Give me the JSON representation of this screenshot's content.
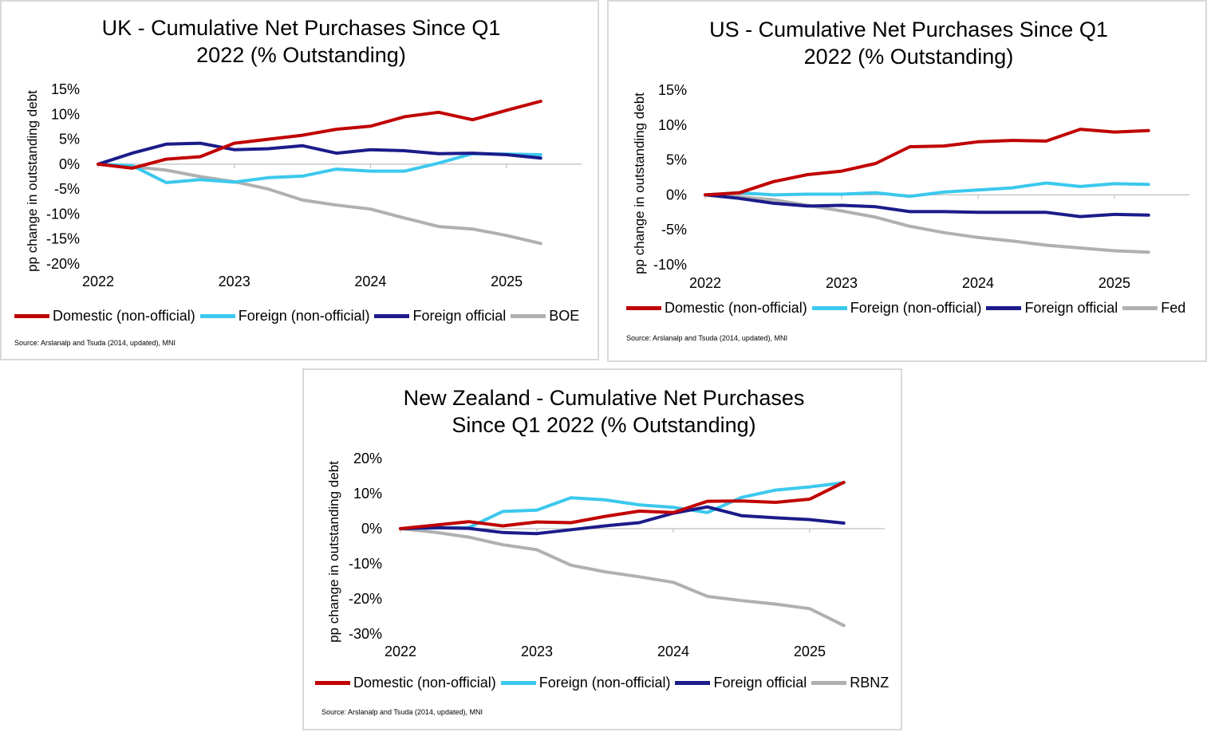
{
  "colors": {
    "domestic": "#c00000",
    "foreign_nonofficial": "#3cc8ee",
    "foreign_official": "#1b1b8a",
    "central_bank": "#b0b0b0",
    "axis": "#bfbfbf"
  },
  "chart_data": [
    {
      "id": "uk",
      "type": "line",
      "title_line1": "UK - Cumulative Net Purchases Since Q1",
      "title_line2": "2022 (% Outstanding)",
      "ylabel": "pp change in outstanding debt",
      "source": "Source: Arslanalp and Tsuda (2014, updated), MNI",
      "ylim": [
        -20,
        15
      ],
      "yticks": [
        15,
        10,
        5,
        0,
        -5,
        -10,
        -15,
        -20
      ],
      "ytick_labels": [
        "15%",
        "10%",
        "5%",
        "0%",
        "-5%",
        "-10%",
        "-15%",
        "-20%"
      ],
      "xticks": [
        2022,
        2023,
        2024,
        2025
      ],
      "xtick_labels": [
        "2022",
        "2023",
        "2024",
        "2025"
      ],
      "x": [
        2022.0,
        2022.25,
        2022.5,
        2022.75,
        2023.0,
        2023.25,
        2023.5,
        2023.75,
        2024.0,
        2024.25,
        2024.5,
        2024.75,
        2025.0,
        2025.25
      ],
      "series": [
        {
          "name": "Domestic (non-official)",
          "color_key": "domestic",
          "values": [
            0,
            -0.8,
            1.0,
            1.5,
            4.2,
            5.0,
            5.8,
            7.0,
            7.6,
            9.5,
            10.4,
            8.9,
            10.8,
            12.6
          ]
        },
        {
          "name": "Foreign (non-official)",
          "color_key": "foreign_nonofficial",
          "values": [
            0,
            -0.3,
            -3.7,
            -3.1,
            -3.6,
            -2.7,
            -2.4,
            -1.0,
            -1.4,
            -1.4,
            0.2,
            2.1,
            2.0,
            1.9
          ]
        },
        {
          "name": "Foreign official",
          "color_key": "foreign_official",
          "values": [
            0,
            2.2,
            4.0,
            4.2,
            2.9,
            3.1,
            3.7,
            2.2,
            2.9,
            2.7,
            2.1,
            2.2,
            1.9,
            1.2
          ]
        },
        {
          "name": "BOE",
          "color_key": "central_bank",
          "values": [
            0,
            -0.5,
            -1.2,
            -2.5,
            -3.5,
            -5.0,
            -7.2,
            -8.2,
            -9.0,
            -10.8,
            -12.5,
            -13.0,
            -14.3,
            -15.9
          ]
        }
      ]
    },
    {
      "id": "us",
      "type": "line",
      "title_line1": "US - Cumulative Net Purchases Since Q1",
      "title_line2": "2022 (% Outstanding)",
      "ylabel": "pp change in outstanding debt",
      "source": "Source: Arslanalp and Tsuda (2014, updated), MNI",
      "ylim": [
        -10,
        15
      ],
      "yticks": [
        15,
        10,
        5,
        0,
        -5,
        -10
      ],
      "ytick_labels": [
        "15%",
        "10%",
        "5%",
        "0%",
        "-5%",
        "-10%"
      ],
      "xticks": [
        2022,
        2023,
        2024,
        2025
      ],
      "xtick_labels": [
        "2022",
        "2023",
        "2024",
        "2025"
      ],
      "x": [
        2022.0,
        2022.25,
        2022.5,
        2022.75,
        2023.0,
        2023.25,
        2023.5,
        2023.75,
        2024.0,
        2024.25,
        2024.5,
        2024.75,
        2025.0,
        2025.25
      ],
      "series": [
        {
          "name": "Domestic (non-official)",
          "color_key": "domestic",
          "values": [
            0,
            0.3,
            1.9,
            2.9,
            3.4,
            4.5,
            6.9,
            7.0,
            7.6,
            7.8,
            7.7,
            9.4,
            9.0,
            9.2
          ]
        },
        {
          "name": "Foreign (non-official)",
          "color_key": "foreign_nonofficial",
          "values": [
            0,
            0.3,
            0.0,
            0.1,
            0.1,
            0.3,
            -0.2,
            0.4,
            0.7,
            1.0,
            1.7,
            1.2,
            1.6,
            1.5
          ]
        },
        {
          "name": "Foreign official",
          "color_key": "foreign_official",
          "values": [
            0,
            -0.5,
            -1.2,
            -1.6,
            -1.5,
            -1.7,
            -2.4,
            -2.4,
            -2.5,
            -2.5,
            -2.5,
            -3.1,
            -2.8,
            -2.9
          ]
        },
        {
          "name": "Fed",
          "color_key": "central_bank",
          "values": [
            0,
            -0.3,
            -0.7,
            -1.5,
            -2.3,
            -3.2,
            -4.5,
            -5.4,
            -6.1,
            -6.6,
            -7.2,
            -7.6,
            -8.0,
            -8.2
          ]
        }
      ]
    },
    {
      "id": "nz",
      "type": "line",
      "title_line1": "New Zealand - Cumulative Net Purchases",
      "title_line2": "Since Q1 2022 (% Outstanding)",
      "ylabel": "pp change in outstanding debt",
      "source": "Source: Arslanalp and Tsuda (2014, updated), MNI",
      "ylim": [
        -30,
        20
      ],
      "yticks": [
        20,
        10,
        0,
        -10,
        -20,
        -30
      ],
      "ytick_labels": [
        "20%",
        "10%",
        "0%",
        "-10%",
        "-20%",
        "-30%"
      ],
      "xticks": [
        2022,
        2023,
        2024,
        2025
      ],
      "xtick_labels": [
        "2022",
        "2023",
        "2024",
        "2025"
      ],
      "x": [
        2022.0,
        2022.25,
        2022.5,
        2022.75,
        2023.0,
        2023.25,
        2023.5,
        2023.75,
        2024.0,
        2024.25,
        2024.5,
        2024.75,
        2025.0,
        2025.25
      ],
      "series": [
        {
          "name": "Domestic (non-official)",
          "color_key": "domestic",
          "values": [
            0,
            1.0,
            2.0,
            0.8,
            1.9,
            1.7,
            3.5,
            5.0,
            4.6,
            7.8,
            7.9,
            7.5,
            8.4,
            13.2
          ]
        },
        {
          "name": "Foreign (non-official)",
          "color_key": "foreign_nonofficial",
          "values": [
            0,
            0.2,
            0.3,
            4.9,
            5.3,
            8.8,
            8.2,
            6.8,
            6.1,
            4.6,
            8.9,
            11.0,
            11.9,
            13.1
          ]
        },
        {
          "name": "Foreign official",
          "color_key": "foreign_official",
          "values": [
            0,
            0.3,
            0.1,
            -1.1,
            -1.4,
            -0.3,
            0.8,
            1.7,
            4.4,
            6.2,
            3.7,
            3.1,
            2.6,
            1.6
          ]
        },
        {
          "name": "RBNZ",
          "color_key": "central_bank",
          "values": [
            0,
            -1.0,
            -2.4,
            -4.6,
            -6.0,
            -10.4,
            -12.3,
            -13.7,
            -15.3,
            -19.3,
            -20.5,
            -21.5,
            -22.8,
            -27.6
          ]
        }
      ]
    }
  ]
}
